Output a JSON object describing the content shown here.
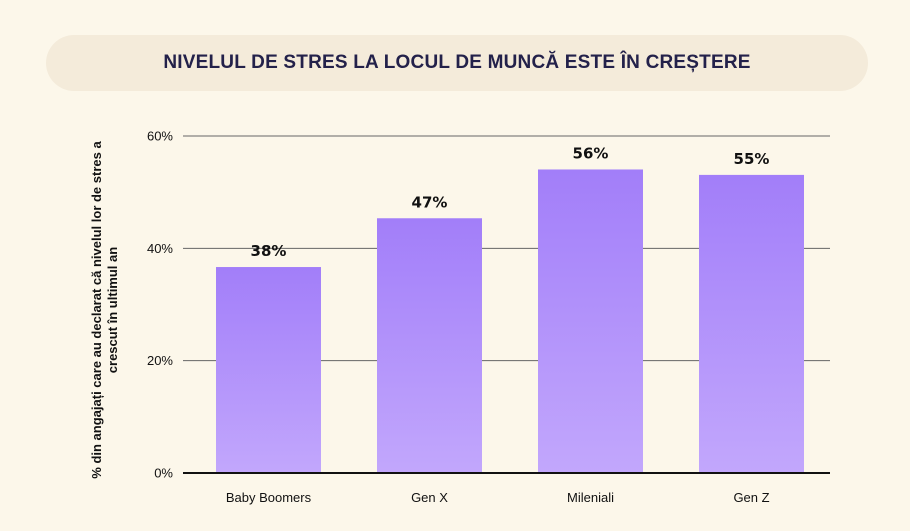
{
  "chart_data": {
    "type": "bar",
    "title": "NIVELUL DE STRES LA LOCUL DE MUNCĂ ESTE ÎN CREȘTERE",
    "xlabel": "",
    "ylabel": "% din angajați care au declarat că nivelul lor de stres a crescut în ultimul an",
    "categories": [
      "Baby Boomers",
      "Gen X",
      "Mileniali",
      "Gen Z"
    ],
    "values": [
      38,
      47,
      56,
      55
    ],
    "value_labels": [
      "38%",
      "47%",
      "56%",
      "55%"
    ],
    "ylim": [
      0,
      60
    ],
    "yticks": [
      0,
      20,
      40,
      60
    ],
    "ytick_labels": [
      "0%",
      "20%",
      "40%",
      "60%"
    ],
    "grid": true,
    "colors": {
      "bar_top": "#a27ef9",
      "bar_bottom": "#c2a7fc",
      "gridline": "#666666",
      "axis": "#111111",
      "title_pill": "#f4ebda",
      "background": "#fcf7ea",
      "title_text": "#23214a"
    }
  }
}
